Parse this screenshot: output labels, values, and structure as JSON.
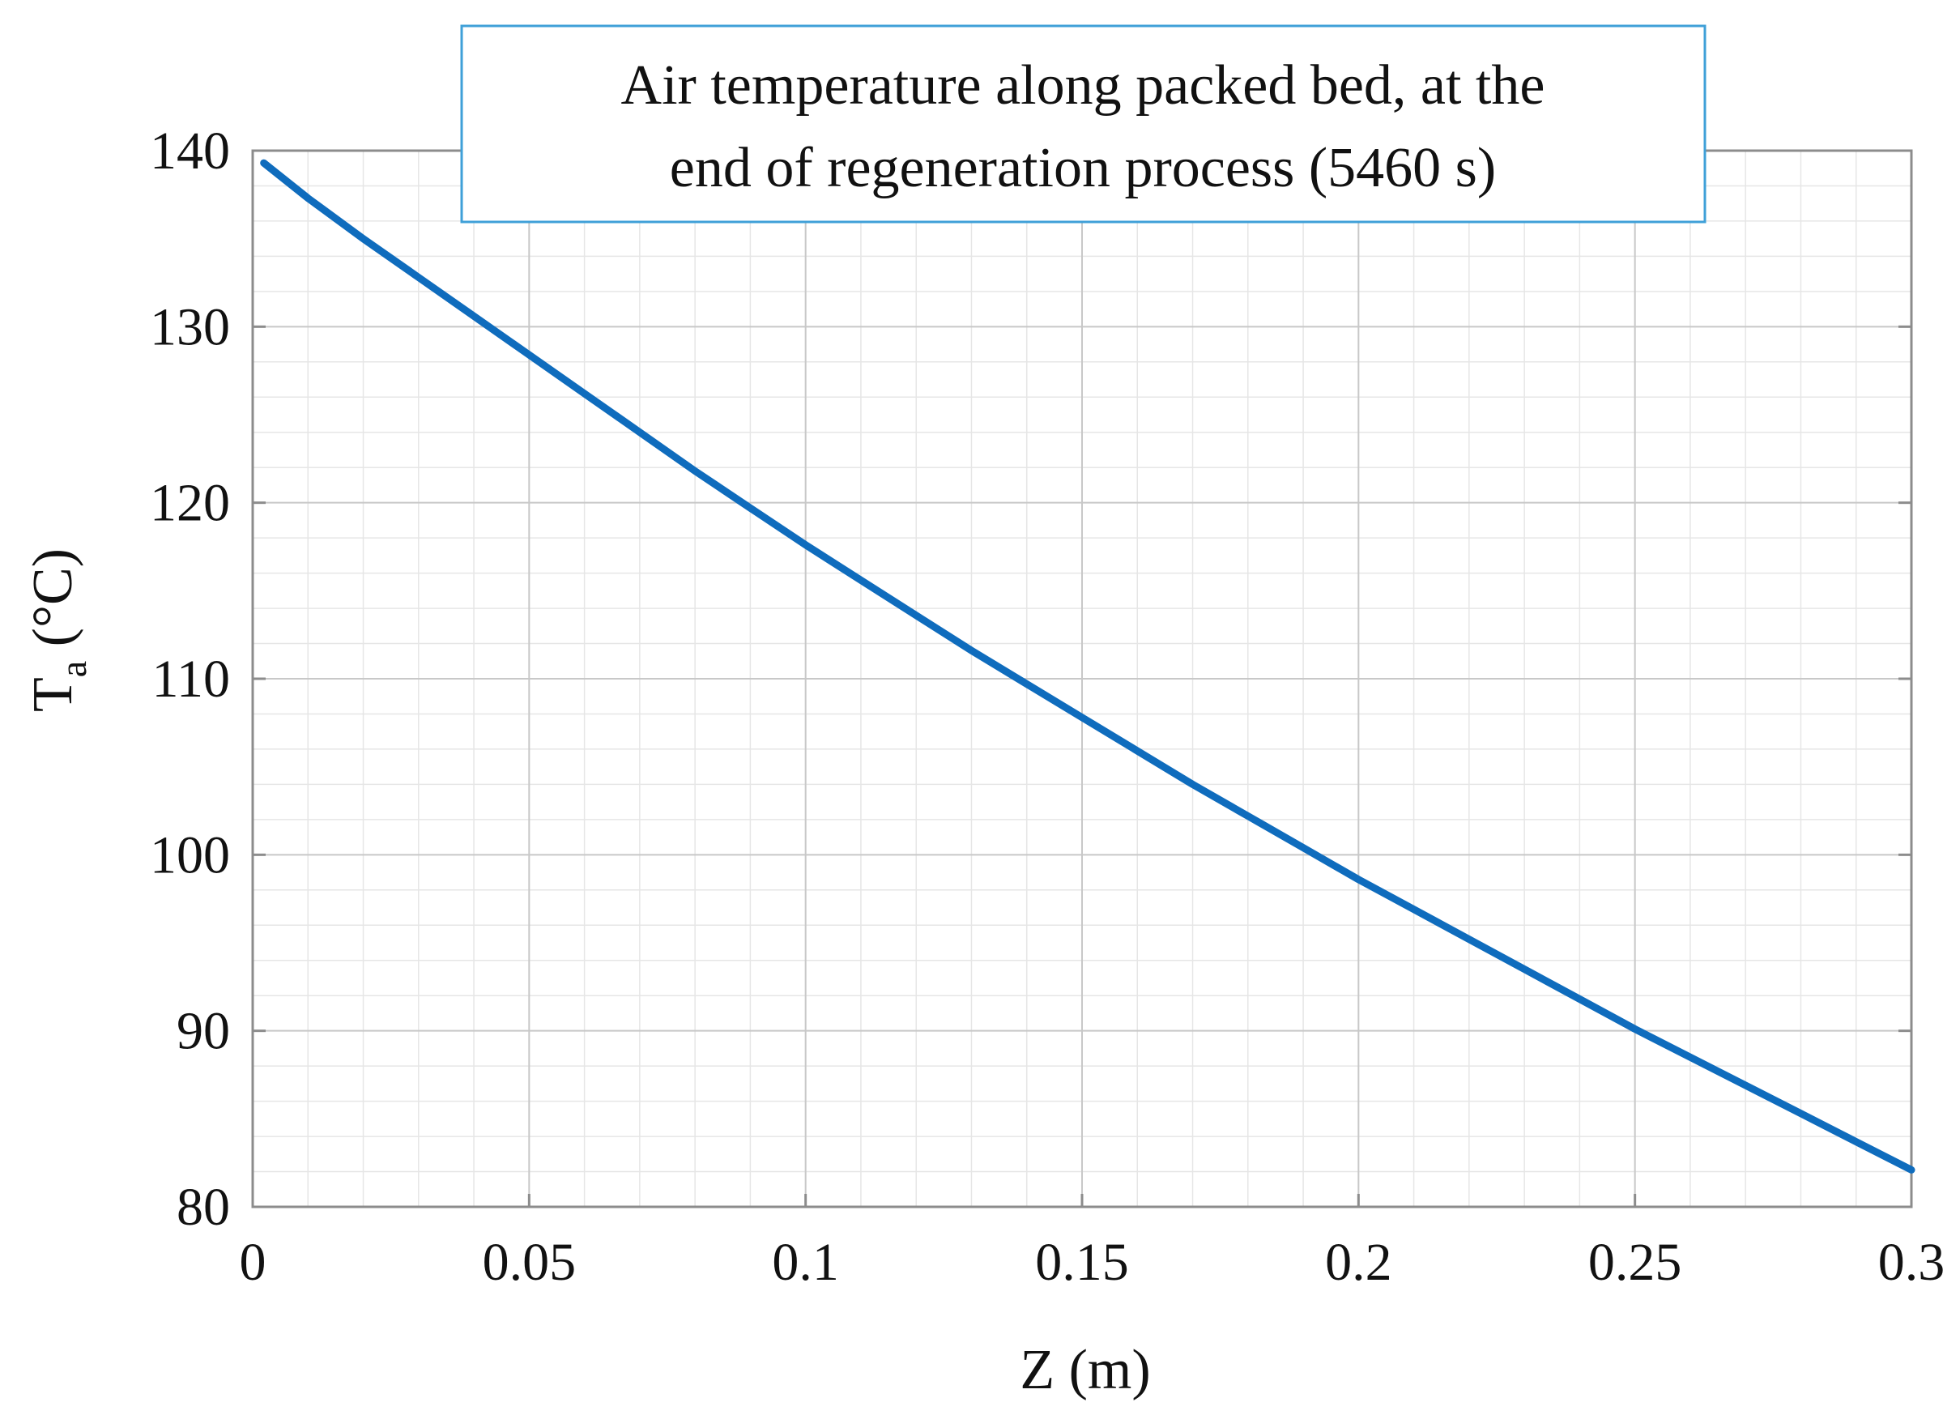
{
  "chart_data": {
    "type": "line",
    "title_lines": [
      "Air temperature along packed bed, at the",
      "end of regeneration process (5460 s)"
    ],
    "xlabel": "Z (m)",
    "ylabel_main": "T",
    "ylabel_sub": "a",
    "ylabel_unit": " (°C)",
    "xlim": [
      0,
      0.3
    ],
    "ylim": [
      80,
      140
    ],
    "x_ticks": [
      0,
      0.05,
      0.1,
      0.15,
      0.2,
      0.25,
      0.3
    ],
    "x_tick_labels": [
      "0",
      "0.05",
      "0.1",
      "0.15",
      "0.2",
      "0.25",
      "0.3"
    ],
    "y_ticks": [
      80,
      90,
      100,
      110,
      120,
      130,
      140
    ],
    "y_tick_labels": [
      "80",
      "90",
      "100",
      "110",
      "120",
      "130",
      "140"
    ],
    "grid": true,
    "minor_grid": true,
    "series": [
      {
        "name": "T_a",
        "color": "#0f6cbd",
        "x": [
          0.002,
          0.01,
          0.02,
          0.03,
          0.04,
          0.05,
          0.06,
          0.07,
          0.08,
          0.09,
          0.1,
          0.11,
          0.12,
          0.13,
          0.14,
          0.15,
          0.16,
          0.17,
          0.18,
          0.19,
          0.2,
          0.21,
          0.22,
          0.23,
          0.24,
          0.25,
          0.26,
          0.27,
          0.28,
          0.29,
          0.3
        ],
        "y": [
          139.3,
          137.3,
          135.0,
          132.8,
          130.6,
          128.4,
          126.2,
          124.0,
          121.8,
          119.7,
          117.6,
          115.6,
          113.6,
          111.6,
          109.7,
          107.8,
          105.9,
          104.0,
          102.2,
          100.4,
          98.6,
          96.9,
          95.2,
          93.5,
          91.8,
          90.1,
          88.5,
          86.9,
          85.3,
          83.7,
          82.1
        ]
      }
    ],
    "colors": {
      "line": "#0f6cbd",
      "title_box_border": "#3fa0d8",
      "major_grid": "#c8c8c8",
      "minor_grid": "#e6e6e6",
      "axes": "#8c8c8c"
    }
  }
}
